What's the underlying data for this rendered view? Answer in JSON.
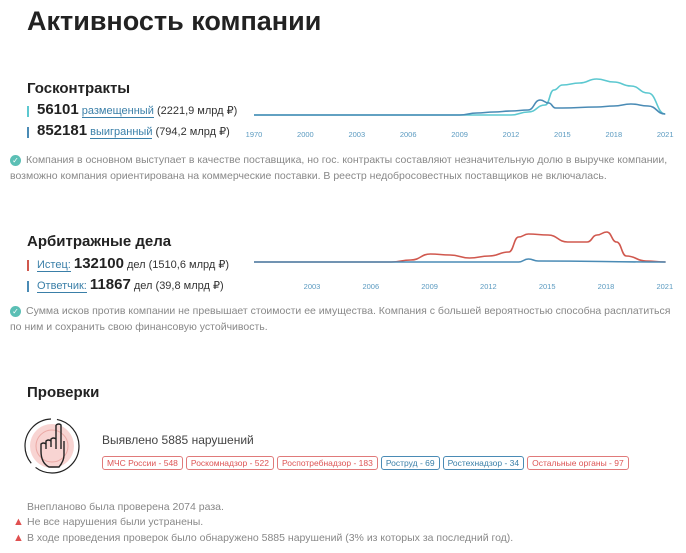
{
  "title": "Активность компании",
  "gos": {
    "heading": "Госконтракты",
    "placed": {
      "count": "56101",
      "label": "размещенный",
      "sum": "(2221,9 млрд ₽)"
    },
    "won": {
      "count": "852181",
      "label": "выигранный",
      "sum": "(794,2 млрд ₽)"
    },
    "note": "Компания в основном выступает в качестве поставщика, но гос. контракты составляют незначительную долю в выручке компании, возможно компания ориентирована на коммерческие поставки. В реестр недобросовестных поставщиков не включалась."
  },
  "arb": {
    "heading": "Арбитражные дела",
    "plaintiff": {
      "label": "Истец:",
      "count": "132100",
      "unit": "дел",
      "sum": "(1510,6 млрд ₽)"
    },
    "defendant": {
      "label": "Ответчик:",
      "count": "11867",
      "unit": "дел",
      "sum": "(39,8 млрд ₽)"
    },
    "note": "Сумма исков против компании не превышает стоимости ее имущества. Компания с большей вероятностью способна расплатиться по ним и сохранить свою финансовую устойчивость."
  },
  "checks": {
    "heading": "Проверки",
    "found": "Выявлено 5885 нарушений",
    "tags": [
      {
        "label": "МЧС России - 548",
        "color": "red"
      },
      {
        "label": "Роскомнадзор - 522",
        "color": "red"
      },
      {
        "label": "Роспотребнадзор - 183",
        "color": "red"
      },
      {
        "label": "Роструд - 69",
        "color": "blue"
      },
      {
        "label": "Ростехнадзор - 34",
        "color": "blue"
      },
      {
        "label": "Остальные органы - 97",
        "color": "red"
      }
    ],
    "unplanned": "Внепланово была проверена 2074 раза.",
    "warn1": "Не все нарушения были устранены.",
    "warn2": "В ходе проведения проверок было обнаружено 5885 нарушений (3% из которых за последний год)."
  },
  "colors": {
    "cyan": "#5cc8d0",
    "blue": "#4a8bb5",
    "red": "#d0584e",
    "check": "#5bbfb5"
  },
  "chart_data": [
    {
      "type": "line",
      "ticks": [
        "1970",
        "2000",
        "2003",
        "2006",
        "2009",
        "2012",
        "2015",
        "2018",
        "2021"
      ],
      "series": [
        {
          "color": "#5cc8d0",
          "x": [
            1970,
            2000,
            2009,
            2012,
            2013,
            2014,
            2014.5,
            2015,
            2016,
            2017,
            2018,
            2019,
            2020,
            2021
          ],
          "y": [
            1,
            1,
            1,
            1,
            4,
            11,
            26,
            31,
            33,
            37,
            34,
            30,
            23,
            2
          ]
        },
        {
          "color": "#4a8bb5",
          "x": [
            1970,
            2000,
            2009,
            2010,
            2011,
            2012,
            2013,
            2013.7,
            2014.2,
            2014.6,
            2015,
            2017,
            2018,
            2019,
            2020,
            2021
          ],
          "y": [
            1,
            1,
            1,
            3,
            4,
            5,
            6,
            16,
            13,
            8,
            8,
            9,
            10,
            12,
            10,
            2
          ]
        }
      ]
    },
    {
      "type": "line",
      "ticks": [
        "2003",
        "2006",
        "2009",
        "2012",
        "2015",
        "2018",
        "2021"
      ],
      "series": [
        {
          "color": "#d0584e",
          "x": [
            2000,
            2007,
            2008,
            2009,
            2010,
            2011,
            2012,
            2013,
            2013.5,
            2014,
            2015,
            2016,
            2017,
            2017.5,
            2018,
            2018.5,
            2019,
            2020,
            2021
          ],
          "y": [
            0,
            0,
            2,
            8,
            7,
            4,
            6,
            10,
            25,
            28,
            27,
            20,
            20,
            27,
            30,
            20,
            6,
            1,
            0
          ]
        },
        {
          "color": "#4a8bb5",
          "x": [
            2000,
            2013.5,
            2014,
            2014.5,
            2021
          ],
          "y": [
            0,
            0,
            3,
            1,
            0
          ]
        }
      ]
    }
  ]
}
